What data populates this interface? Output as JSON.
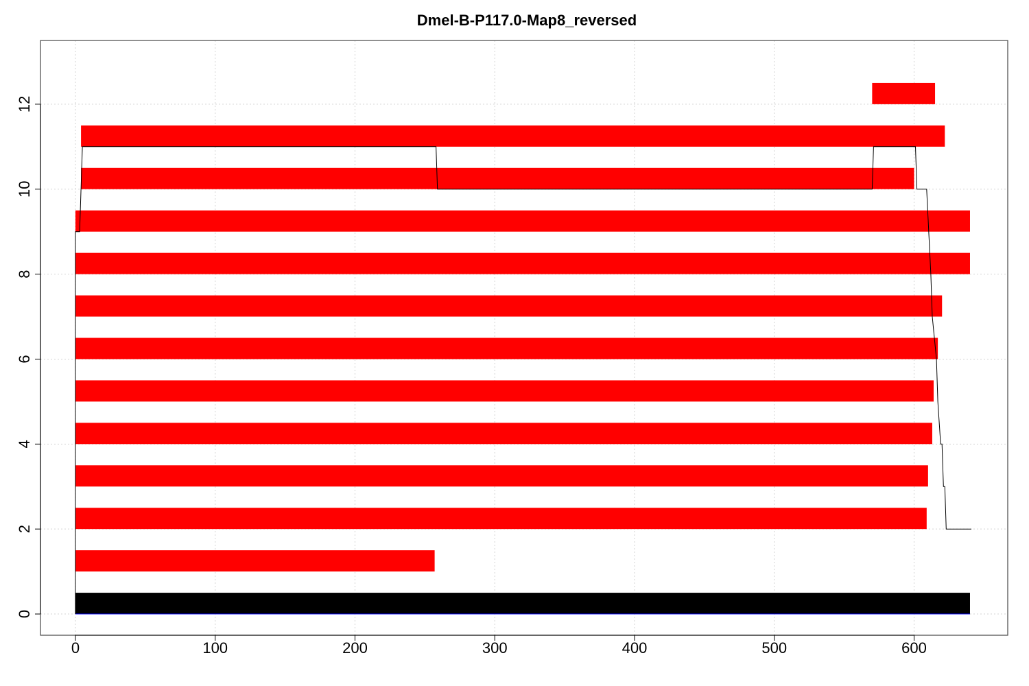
{
  "chart_data": {
    "type": "bar",
    "title": "Dmel-B-P117.0-Map8_reversed",
    "xlabel": "",
    "ylabel": "",
    "xlim": [
      -25,
      667
    ],
    "ylim": [
      -0.5,
      13.5
    ],
    "x_ticks": [
      "0",
      "100",
      "200",
      "300",
      "400",
      "500",
      "600"
    ],
    "y_ticks": [
      "0",
      "2",
      "4",
      "6",
      "8",
      "10",
      "12"
    ],
    "grid": true,
    "colors": {
      "reference": "#000000",
      "segment": "#ff0000",
      "path": "#000000",
      "baseline": "#0000ff"
    },
    "reference_bar": {
      "y": 0,
      "x_start": 0,
      "x_end": 640
    },
    "segments": [
      {
        "y": 1,
        "x_start": 0,
        "x_end": 257
      },
      {
        "y": 2,
        "x_start": 0,
        "x_end": 609
      },
      {
        "y": 3,
        "x_start": 0,
        "x_end": 610
      },
      {
        "y": 4,
        "x_start": 0,
        "x_end": 613
      },
      {
        "y": 5,
        "x_start": 0,
        "x_end": 614
      },
      {
        "y": 6,
        "x_start": 0,
        "x_end": 617
      },
      {
        "y": 7,
        "x_start": 0,
        "x_end": 620
      },
      {
        "y": 8,
        "x_start": 0,
        "x_end": 640
      },
      {
        "y": 9,
        "x_start": 0,
        "x_end": 640
      },
      {
        "y": 10,
        "x_start": 4,
        "x_end": 600
      },
      {
        "y": 11,
        "x_start": 4,
        "x_end": 622
      },
      {
        "y": 12,
        "x_start": 570,
        "x_end": 615
      }
    ],
    "path": [
      [
        0,
        0
      ],
      [
        0,
        9
      ],
      [
        3,
        9
      ],
      [
        4,
        10
      ],
      [
        5,
        11
      ],
      [
        258,
        11
      ],
      [
        259,
        10
      ],
      [
        570,
        10
      ],
      [
        571,
        11
      ],
      [
        601,
        11
      ],
      [
        602,
        10
      ],
      [
        609,
        10
      ],
      [
        612,
        8
      ],
      [
        613,
        7
      ],
      [
        616,
        6
      ],
      [
        617,
        5
      ],
      [
        619,
        4
      ],
      [
        620,
        4
      ],
      [
        621,
        3
      ],
      [
        622,
        3
      ],
      [
        623,
        2
      ],
      [
        641,
        2
      ]
    ]
  }
}
